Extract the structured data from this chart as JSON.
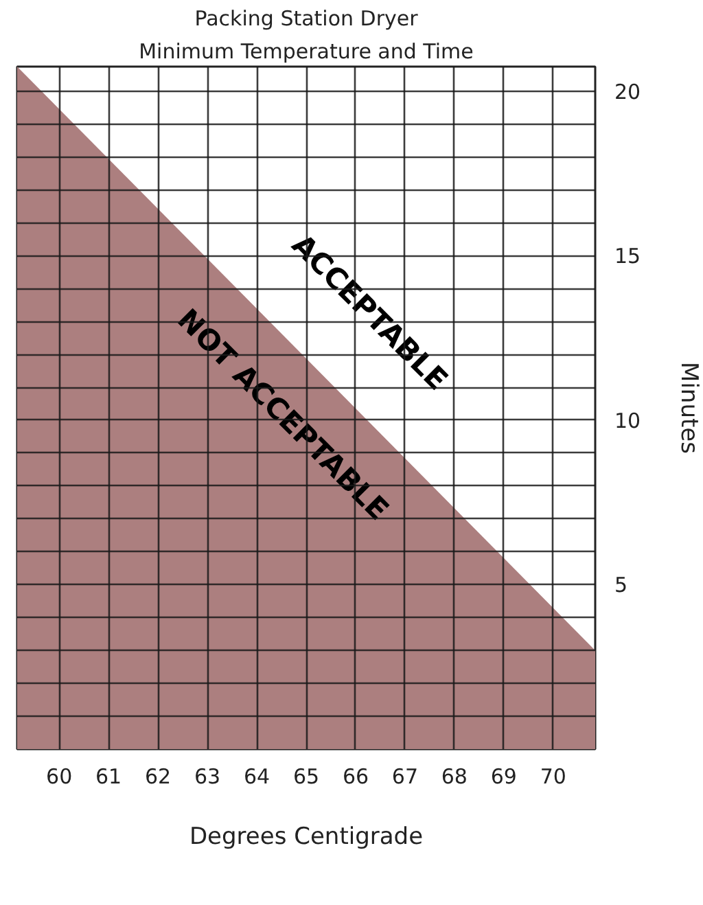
{
  "chart_data": {
    "type": "area",
    "title": "Packing Station Dryer",
    "subtitle": "Minimum Temperature and Time",
    "xlabel": "Degrees Centigrade",
    "ylabel": "Minutes",
    "x": [
      59.15,
      70.85
    ],
    "series": [
      {
        "color": "#ac7f7f",
        "values": [
          20.75,
          3
        ]
      }
    ],
    "xlim": [
      59.15,
      70.85
    ],
    "ylim": [
      0,
      20.75
    ],
    "xticks": [
      60,
      61,
      62,
      63,
      64,
      65,
      66,
      67,
      68,
      69,
      70
    ],
    "yticks": [
      {
        "value": 1,
        "label": null
      },
      {
        "value": 2,
        "label": null
      },
      {
        "value": 3,
        "label": null
      },
      {
        "value": 4,
        "label": null
      },
      5,
      {
        "value": 6,
        "label": null
      },
      {
        "value": 7,
        "label": null
      },
      {
        "value": 8,
        "label": null
      },
      {
        "value": 9,
        "label": null
      },
      10,
      {
        "value": 11,
        "label": null
      },
      {
        "value": 12,
        "label": null
      },
      {
        "value": 13,
        "label": null
      },
      {
        "value": 14,
        "label": null
      },
      15,
      {
        "value": 16,
        "label": null
      },
      {
        "value": 17,
        "label": null
      },
      {
        "value": 18,
        "label": null
      },
      {
        "value": 19,
        "label": null
      },
      20
    ],
    "grid": true,
    "annotations": [
      "ACCEPTABLE",
      "NOT ACCEPTABLE"
    ]
  }
}
